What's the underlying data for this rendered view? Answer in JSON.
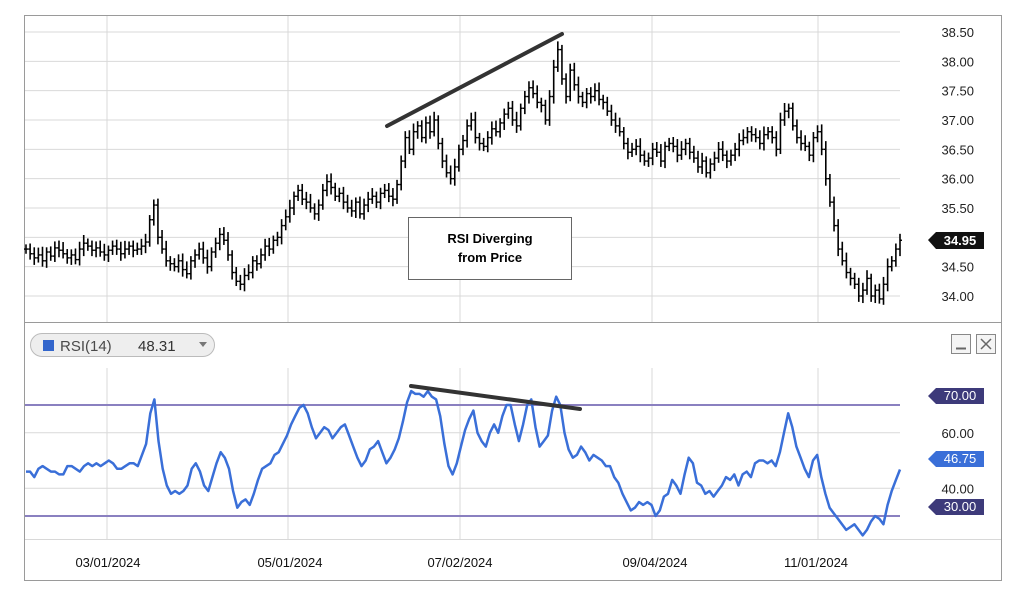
{
  "price_panel": {
    "current_price_label": "34.95",
    "annotation": {
      "line1": "RSI Diverging",
      "line2": "from Price"
    },
    "colors": {
      "bars": "#000000",
      "trendline": "#333333",
      "current_tag": "#111111"
    }
  },
  "rsi_panel": {
    "legend_prefix": "RSI(14)",
    "legend_value": "48.31",
    "legend_swatch_color": "#3366cc",
    "minimize_icon": "minimize-icon",
    "close_icon": "close-icon",
    "tag_70": "70.00",
    "tag_current": "46.75",
    "tag_30": "30.00",
    "colors": {
      "line": "#3a6fd8",
      "bands": "#8a80c0",
      "tag_bg": "#3d3a7a",
      "current_tag_bg": "#3a6fd8",
      "trendline": "#333333"
    }
  },
  "x_axis": {
    "ticks": [
      "03/01/2024",
      "05/01/2024",
      "07/02/2024",
      "09/04/2024",
      "11/01/2024"
    ]
  },
  "chart_data": [
    {
      "type": "ohlc",
      "yaxis_ticks": [
        "38.50",
        "38.00",
        "37.50",
        "37.00",
        "36.50",
        "36.00",
        "35.50",
        "35.00",
        "34.50",
        "34.00"
      ],
      "ylim": [
        33.75,
        38.6
      ],
      "close": [
        34.8,
        34.72,
        34.65,
        34.7,
        34.6,
        34.75,
        34.68,
        34.82,
        34.78,
        34.72,
        34.65,
        34.7,
        34.62,
        34.8,
        34.9,
        34.85,
        34.78,
        34.82,
        34.75,
        34.7,
        34.78,
        34.85,
        34.8,
        34.72,
        34.8,
        34.85,
        34.78,
        34.8,
        34.85,
        34.92,
        35.3,
        35.55,
        35.0,
        34.8,
        34.6,
        34.55,
        34.5,
        34.6,
        34.45,
        34.38,
        34.6,
        34.7,
        34.8,
        34.65,
        34.5,
        34.75,
        34.9,
        35.05,
        34.95,
        34.7,
        34.4,
        34.25,
        34.2,
        34.35,
        34.4,
        34.6,
        34.55,
        34.7,
        34.85,
        34.8,
        34.95,
        35.0,
        35.2,
        35.35,
        35.5,
        35.7,
        35.8,
        35.65,
        35.6,
        35.5,
        35.4,
        35.55,
        35.8,
        35.95,
        35.85,
        35.7,
        35.75,
        35.6,
        35.5,
        35.45,
        35.6,
        35.4,
        35.55,
        35.65,
        35.7,
        35.6,
        35.75,
        35.8,
        35.7,
        35.65,
        35.9,
        36.3,
        36.7,
        36.5,
        36.8,
        36.9,
        36.7,
        36.95,
        36.8,
        37.0,
        36.6,
        36.3,
        36.1,
        36.0,
        36.2,
        36.5,
        36.65,
        36.9,
        37.0,
        36.7,
        36.6,
        36.55,
        36.7,
        36.85,
        36.8,
        36.95,
        37.1,
        37.2,
        37.0,
        36.9,
        37.2,
        37.4,
        37.55,
        37.45,
        37.3,
        37.25,
        37.0,
        37.4,
        37.9,
        38.2,
        37.7,
        37.4,
        37.85,
        37.6,
        37.4,
        37.3,
        37.45,
        37.4,
        37.5,
        37.35,
        37.3,
        37.15,
        37.0,
        36.9,
        36.8,
        36.6,
        36.45,
        36.5,
        36.55,
        36.4,
        36.3,
        36.35,
        36.5,
        36.45,
        36.3,
        36.55,
        36.6,
        36.55,
        36.4,
        36.5,
        36.6,
        36.45,
        36.35,
        36.2,
        36.3,
        36.1,
        36.25,
        36.35,
        36.5,
        36.4,
        36.3,
        36.4,
        36.5,
        36.65,
        36.7,
        36.8,
        36.75,
        36.7,
        36.6,
        36.75,
        36.8,
        36.7,
        36.5,
        37.0,
        37.15,
        37.2,
        36.9,
        36.7,
        36.6,
        36.55,
        36.4,
        36.7,
        36.8,
        36.5,
        36.0,
        35.6,
        35.2,
        34.8,
        34.6,
        34.4,
        34.3,
        34.2,
        34.0,
        34.1,
        34.3,
        34.0,
        34.1,
        33.95,
        34.2,
        34.5,
        34.6,
        34.8,
        34.95
      ]
    },
    {
      "type": "line",
      "name": "RSI(14)",
      "yaxis_ticks": [
        "60.00",
        "40.00"
      ],
      "bands": [
        30,
        70
      ],
      "ylim": [
        22,
        80
      ],
      "values": [
        46,
        46,
        44,
        47,
        48,
        47,
        46,
        46,
        45,
        45,
        48,
        48,
        47,
        46,
        48,
        49,
        48,
        49,
        48,
        49,
        50,
        49,
        47,
        47,
        48,
        49,
        49,
        48,
        52,
        56,
        67,
        72,
        57,
        47,
        41,
        38,
        39,
        38,
        39,
        41,
        47,
        49,
        46,
        41,
        39,
        44,
        49,
        53,
        51,
        47,
        39,
        33,
        35,
        36,
        34,
        38,
        43,
        47,
        48,
        49,
        52,
        53,
        56,
        59,
        63,
        66,
        69,
        70,
        67,
        62,
        58,
        60,
        62,
        61,
        58,
        60,
        62,
        63,
        59,
        55,
        51,
        48,
        50,
        54,
        55,
        57,
        53,
        49,
        51,
        54,
        58,
        64,
        71,
        75,
        74,
        74,
        73,
        75,
        73,
        72,
        66,
        56,
        48,
        45,
        49,
        55,
        61,
        65,
        68,
        60,
        57,
        55,
        60,
        63,
        60,
        66,
        70,
        70,
        63,
        57,
        63,
        70,
        72,
        62,
        55,
        57,
        59,
        68,
        73,
        70,
        60,
        54,
        51,
        52,
        55,
        53,
        50,
        52,
        51,
        50,
        48,
        48,
        44,
        42,
        38,
        35,
        32,
        33,
        35,
        34,
        35,
        34,
        30,
        32,
        37,
        38,
        43,
        41,
        38,
        45,
        51,
        49,
        42,
        41,
        38,
        39,
        37,
        39,
        41,
        44,
        43,
        45,
        41,
        45,
        46,
        44,
        49,
        50,
        50,
        49,
        50,
        48,
        53,
        60,
        67,
        62,
        55,
        51,
        47,
        44,
        50,
        52,
        44,
        38,
        33,
        31,
        29,
        27,
        25,
        26,
        27,
        25,
        23,
        25,
        28,
        30,
        29,
        27,
        34,
        39,
        43,
        46.75
      ]
    }
  ]
}
